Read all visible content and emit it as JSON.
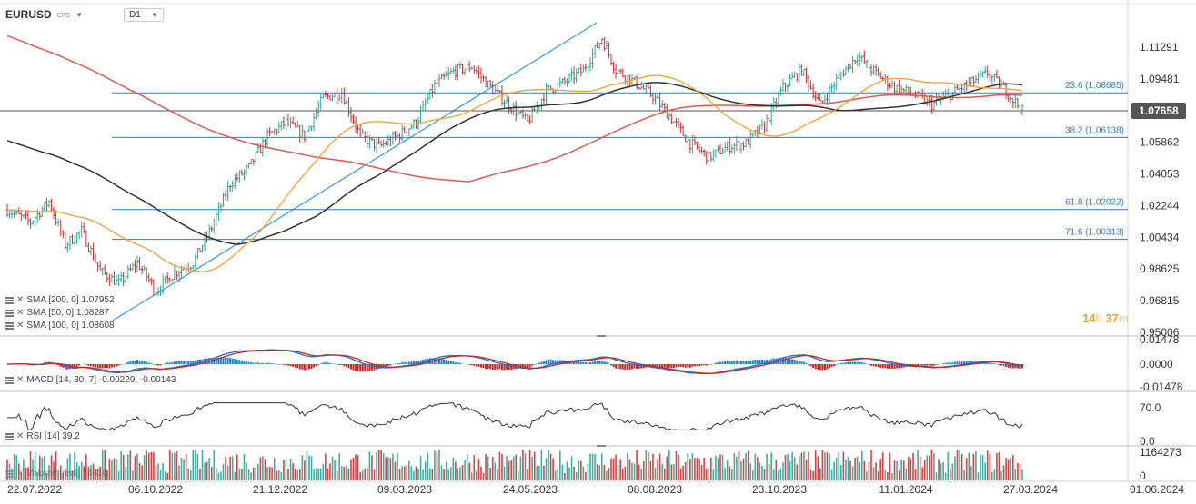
{
  "header": {
    "symbol": "EURUSD",
    "type": "CFD",
    "timeframe": "D1"
  },
  "timer": {
    "hours": "14",
    "h_unit": "h",
    "minutes": "37",
    "m_unit": "m"
  },
  "price_axis": [
    "1.11291",
    "1.09481",
    "1.07658",
    "1.05862",
    "1.04053",
    "1.02244",
    "1.00434",
    "0.98625",
    "0.96815",
    "0.95006"
  ],
  "current_price": "1.07658",
  "macd_axis": [
    "0.01478",
    "0.0000",
    "-0.01478"
  ],
  "rsi_axis": [
    "70.0",
    "0.0"
  ],
  "vol_axis": [
    "1164273",
    "0"
  ],
  "fib": [
    {
      "label": "23.6 (1.08685)",
      "value": 1.08685
    },
    {
      "label": "38.2 (1.06138)",
      "value": 1.06138
    },
    {
      "label": "61.8 (1.02022)",
      "value": 1.02022
    },
    {
      "label": "71.6 (1.00313)",
      "value": 1.00313
    }
  ],
  "indicators": {
    "sma200": "SMA [200, 0]  1.07952",
    "sma50": "SMA [50, 0]  1.08287",
    "sma100": "SMA [100, 0]  1.08608",
    "macd": "MACD [14, 30, 7]  -0.00229,  -0.00143",
    "rsi": "RSI [14]  39.2",
    "volume": "Volume  [real]  74810"
  },
  "x_axis": [
    "22.07.2022",
    "06.10.2022",
    "21.12.2022",
    "09.03.2023",
    "24.05.2023",
    "08.08.2023",
    "23.10.2023",
    "11.01.2024",
    "27.03.2024",
    "01.06.2024"
  ],
  "colors": {
    "sma200": "#e05a50",
    "sma50": "#f0a030",
    "sma100": "#333333",
    "fib": "#2a7fd4",
    "trend": "#3399e6",
    "up": "#26a69a",
    "down": "#d32f2f",
    "macd_up": "#1f7fc6",
    "macd_down": "#c62828"
  },
  "chart_data": {
    "type": "candlestick",
    "instrument": "EURUSD",
    "ylim": [
      0.95006,
      1.12
    ],
    "close_path": [
      [
        0,
        1.02
      ],
      [
        10,
        1.013
      ],
      [
        18,
        1.025
      ],
      [
        25,
        1.0
      ],
      [
        32,
        1.008
      ],
      [
        40,
        0.985
      ],
      [
        48,
        0.978
      ],
      [
        56,
        0.99
      ],
      [
        64,
        0.974
      ],
      [
        72,
        0.984
      ],
      [
        80,
        0.99
      ],
      [
        88,
        1.01
      ],
      [
        96,
        1.035
      ],
      [
        104,
        1.044
      ],
      [
        112,
        1.062
      ],
      [
        120,
        1.07
      ],
      [
        128,
        1.062
      ],
      [
        136,
        1.084
      ],
      [
        144,
        1.087
      ],
      [
        152,
        1.062
      ],
      [
        160,
        1.056
      ],
      [
        168,
        1.062
      ],
      [
        176,
        1.07
      ],
      [
        184,
        1.091
      ],
      [
        192,
        1.099
      ],
      [
        200,
        1.102
      ],
      [
        208,
        1.09
      ],
      [
        216,
        1.08
      ],
      [
        224,
        1.07
      ],
      [
        232,
        1.088
      ],
      [
        240,
        1.093
      ],
      [
        248,
        1.1
      ],
      [
        256,
        1.118
      ],
      [
        262,
        1.1
      ],
      [
        270,
        1.093
      ],
      [
        278,
        1.085
      ],
      [
        286,
        1.072
      ],
      [
        294,
        1.058
      ],
      [
        302,
        1.05
      ],
      [
        310,
        1.056
      ],
      [
        318,
        1.058
      ],
      [
        326,
        1.068
      ],
      [
        334,
        1.09
      ],
      [
        342,
        1.1
      ],
      [
        350,
        1.08
      ],
      [
        358,
        1.096
      ],
      [
        366,
        1.108
      ],
      [
        374,
        1.098
      ],
      [
        382,
        1.09
      ],
      [
        390,
        1.086
      ],
      [
        398,
        1.08
      ],
      [
        406,
        1.086
      ],
      [
        414,
        1.092
      ],
      [
        422,
        1.098
      ],
      [
        430,
        1.088
      ],
      [
        437,
        1.0766
      ]
    ]
  }
}
